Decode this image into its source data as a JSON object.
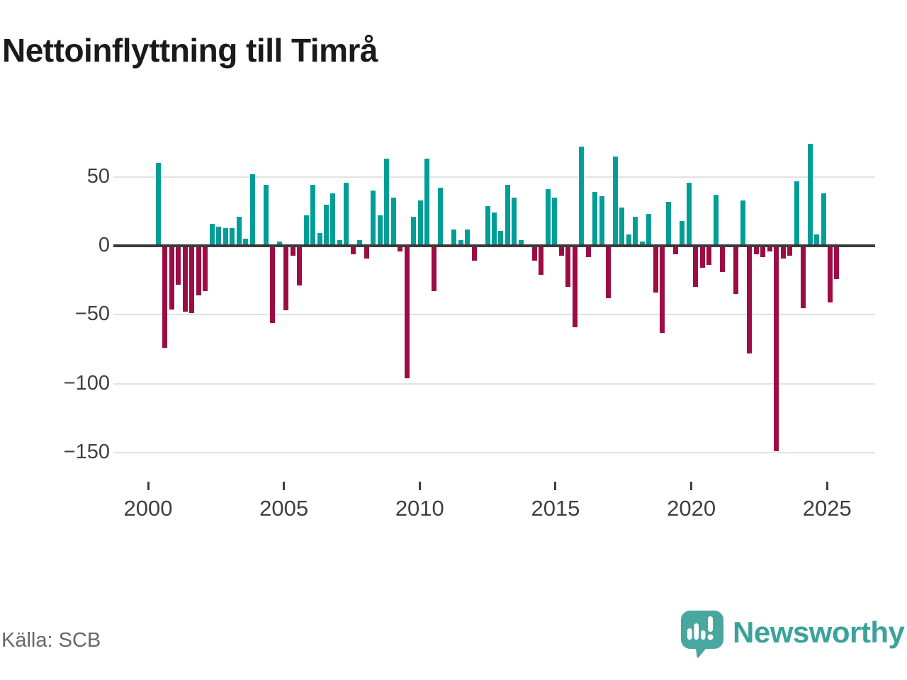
{
  "title": "Nettoinflyttning till Timrå",
  "source": "Källa: SCB",
  "branding": {
    "wordmark": "Newsworthy",
    "logo_icon": "newsworthy-speech-bubble-bar-chart-icon"
  },
  "colors": {
    "positive_bar": "#009e97",
    "negative_bar": "#9e0c44",
    "gridline": "#e1e1e1",
    "zero_line": "#3a3a3a",
    "axis_text": "#3f3f3f",
    "title_text": "#1a1a1a",
    "source_text": "#68686c",
    "brand_teal": "#3aa29b",
    "logo_fill": "#48a79f"
  },
  "chart_data": {
    "type": "bar",
    "frequency": "quarterly",
    "start_year": 2000,
    "start_quarter": 2,
    "end_period": "2025 Q3",
    "values": [
      60,
      -73,
      -45,
      -27,
      -47,
      -48,
      -35,
      -32,
      16,
      14,
      13,
      13,
      21,
      5,
      52,
      0,
      44,
      -55,
      3,
      -46,
      -6,
      -28,
      22,
      44,
      9,
      30,
      38,
      4,
      46,
      -5,
      4,
      -8,
      40,
      22,
      63,
      35,
      -3,
      -95,
      21,
      33,
      63,
      -32,
      42,
      0,
      12,
      4,
      12,
      -10,
      0,
      29,
      24,
      11,
      44,
      35,
      4,
      0,
      -10,
      -20,
      41,
      35,
      -6,
      -29,
      -58,
      72,
      -7,
      39,
      36,
      -37,
      65,
      28,
      8,
      21,
      3,
      23,
      -33,
      -62,
      32,
      -5,
      18,
      46,
      -29,
      -15,
      -13,
      37,
      -18,
      0,
      -34,
      33,
      -77,
      -5,
      -7,
      -3,
      -148,
      -8,
      -6,
      47,
      -44,
      74,
      8,
      38,
      -40,
      -23
    ],
    "y_ticks": [
      50,
      0,
      -50,
      -100,
      -150
    ],
    "x_tick_years": [
      2000,
      2005,
      2010,
      2015,
      2020,
      2025
    ],
    "ylim": [
      -160,
      80
    ],
    "grid": "horizontal-only",
    "legend": "none",
    "positive_color_meaning": "net in-migration",
    "negative_color_meaning": "net out-migration"
  }
}
